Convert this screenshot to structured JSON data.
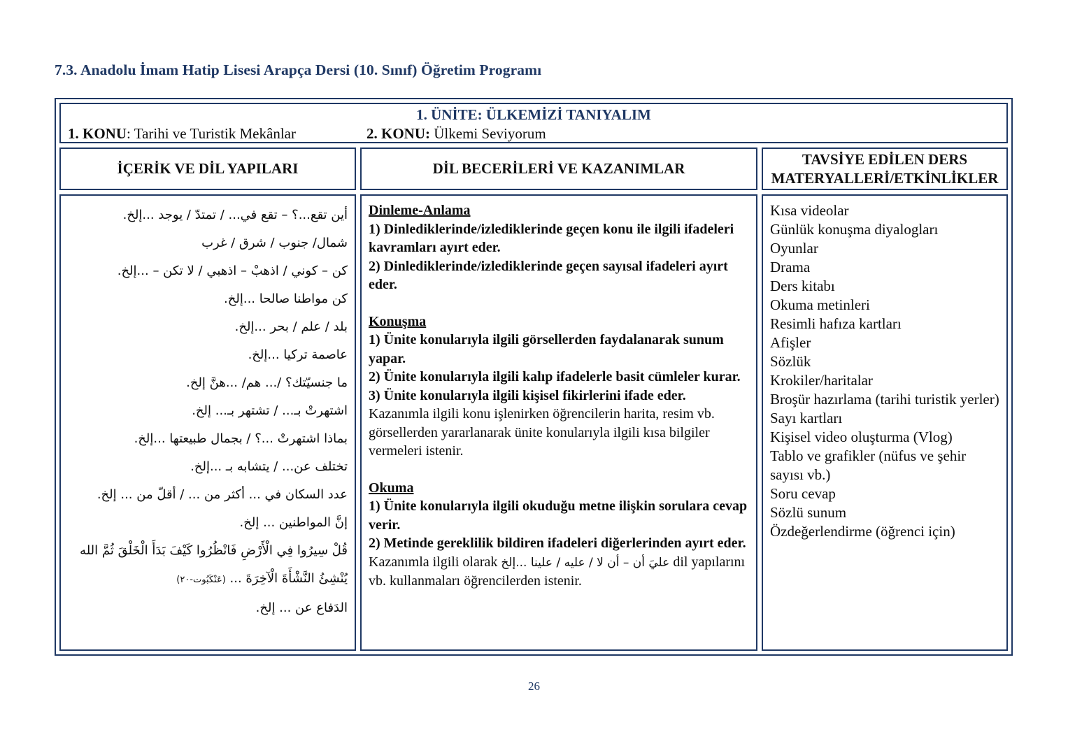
{
  "page": {
    "title": "7.3. Anadolu İmam Hatip Lisesi Arapça Dersi (10. Sınıf) Öğretim Programı",
    "page_number": "26",
    "accent_color": "#1f3864"
  },
  "table": {
    "unit_title": "1. ÜNİTE: ÜLKEMİZİ TANIYALIM",
    "topic1_label": "1. KONU",
    "topic1_text": ": Tarihi ve Turistik Mekânlar",
    "topic2_label": "2. KONU:",
    "topic2_text": " Ülkemi Seviyorum",
    "col1_header": "İÇERİK VE DİL YAPILARI",
    "col2_header": "DİL BECERİLERİ VE KAZANIMLAR",
    "col3_header": "TAVSİYE EDİLEN DERS MATERYALLERİ/ETKİNLİKLER"
  },
  "content": {
    "arabic_lines": [
      "أين تقع...؟ – تقع في... / تمتدّ / يوجد ...إلخ.",
      "شمال/ جنوب / شرق / غرب",
      "كن – كوني / اذهبْ – اذهبي / لا تكن – ...إلخ.",
      "كن مواطنا صالحا ...إلخ.",
      "بلد / علم / بحر ...إلخ.",
      "عاصمة تركيا ...إلخ.",
      "ما جنسيّتك؟ /... هم/ ...هنَّ إلخ.",
      "اشتهرتْ بـ... / تشتهر بـ... إلخ.",
      "بماذا اشتهرتْ ...؟ / بجمال طبيعتها ...إلخ.",
      "تختلف عن... / يتشابه بـ ...إلخ.",
      "عدد السكان في ... أكثر من ... / أقلّ من ... إلخ.",
      "إنَّ المواطنين ... إلخ."
    ],
    "quran_verse": "قُلْ سِيرُوا فِي الْأَرْضِ فَانْظُرُوا كَيْفَ بَدَأَ الْخَلْقَ ثُمَّ الله يُنْشِئُ النَّشْأَةَ الْآخِرَةَ ...",
    "quran_ref": "(عَنْكَبُوت-٢٠)",
    "arabic_last": "الدَفاع عن ... إلخ.",
    "skills": [
      {
        "title": "Dinleme-Anlama",
        "items": [
          "1) Dinlediklerinde/izlediklerinde geçen konu ile ilgili ifadeleri kavramları ayırt eder.",
          "2) Dinlediklerinde/izlediklerinde geçen sayısal ifadeleri ayırt eder."
        ]
      },
      {
        "title": "Konuşma",
        "items": [
          "1) Ünite konularıyla ilgili görsellerden faydalanarak sunum yapar.",
          "2) Ünite konularıyla ilgili kalıp ifadelerle basit cümleler kurar.",
          "3) Ünite konularıyla ilgili kişisel fikirlerini ifade eder."
        ],
        "note": "Kazanımla ilgili konu işlenirken öğrencilerin harita, resim vb. görsellerden yararlanarak ünite konularıyla ilgili kısa bilgiler vermeleri istenir."
      },
      {
        "title": "Okuma",
        "items": [
          "1) Ünite konularıyla ilgili okuduğu metne ilişkin sorulara cevap verir.",
          "2) Metinde gereklilik bildiren ifadeleri diğerlerinden ayırt eder."
        ],
        "note_before": "Kazanımla ilgili olarak ",
        "note_arabic": "عليَ أن – أن لا / عليه / علينا ...إلخ",
        "note_after": " dil yapılarını vb. kullanmaları öğrencilerden istenir."
      }
    ],
    "materials": [
      "Kısa videolar",
      "Günlük konuşma diyalogları",
      "Oyunlar",
      "Drama",
      "Ders kitabı",
      "Okuma metinleri",
      "Resimli hafıza kartları",
      "Afişler",
      "Sözlük",
      "Krokiler/haritalar",
      "Broşür hazırlama (tarihi turistik yerler)",
      "Sayı kartları",
      "Kişisel video oluşturma (Vlog)",
      "Tablo ve grafikler (nüfus ve şehir sayısı vb.)",
      "Soru cevap",
      "Sözlü sunum",
      "Özdeğerlendirme (öğrenci için)"
    ]
  }
}
